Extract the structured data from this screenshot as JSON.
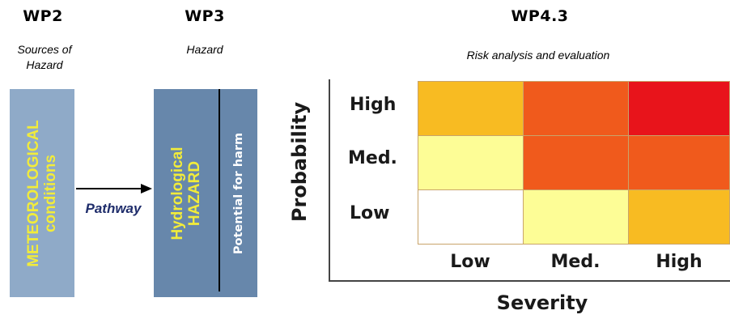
{
  "wp2": {
    "title": "WP2",
    "subtitle_line1": "Sources of",
    "subtitle_line2": "Hazard",
    "box_line1": "METEOROLOGICAL",
    "box_line2": "conditions",
    "box_color": "#8faac8"
  },
  "pathway": {
    "label": "Pathway",
    "label_color": "#1f2d6b"
  },
  "wp3": {
    "title": "WP3",
    "subtitle": "Hazard",
    "box_line1": "Hydrological",
    "box_line2": "HAZARD",
    "side_label": "Potential for harm",
    "box_color": "#6787ab"
  },
  "wp43": {
    "title": "WP4.3",
    "subtitle": "Risk analysis and evaluation"
  },
  "risk_matrix": {
    "y_axis_label": "Probability",
    "x_axis_label": "Severity",
    "row_labels": [
      "High",
      "Med.",
      "Low"
    ],
    "col_labels": [
      "Low",
      "Med.",
      "High"
    ],
    "cell_colors": [
      [
        "#f8bb22",
        "#f05a1c",
        "#e8141b"
      ],
      [
        "#fdfd96",
        "#f05a1c",
        "#f05a1c"
      ],
      [
        "#ffffff",
        "#fdfd96",
        "#f8bb22"
      ]
    ]
  }
}
